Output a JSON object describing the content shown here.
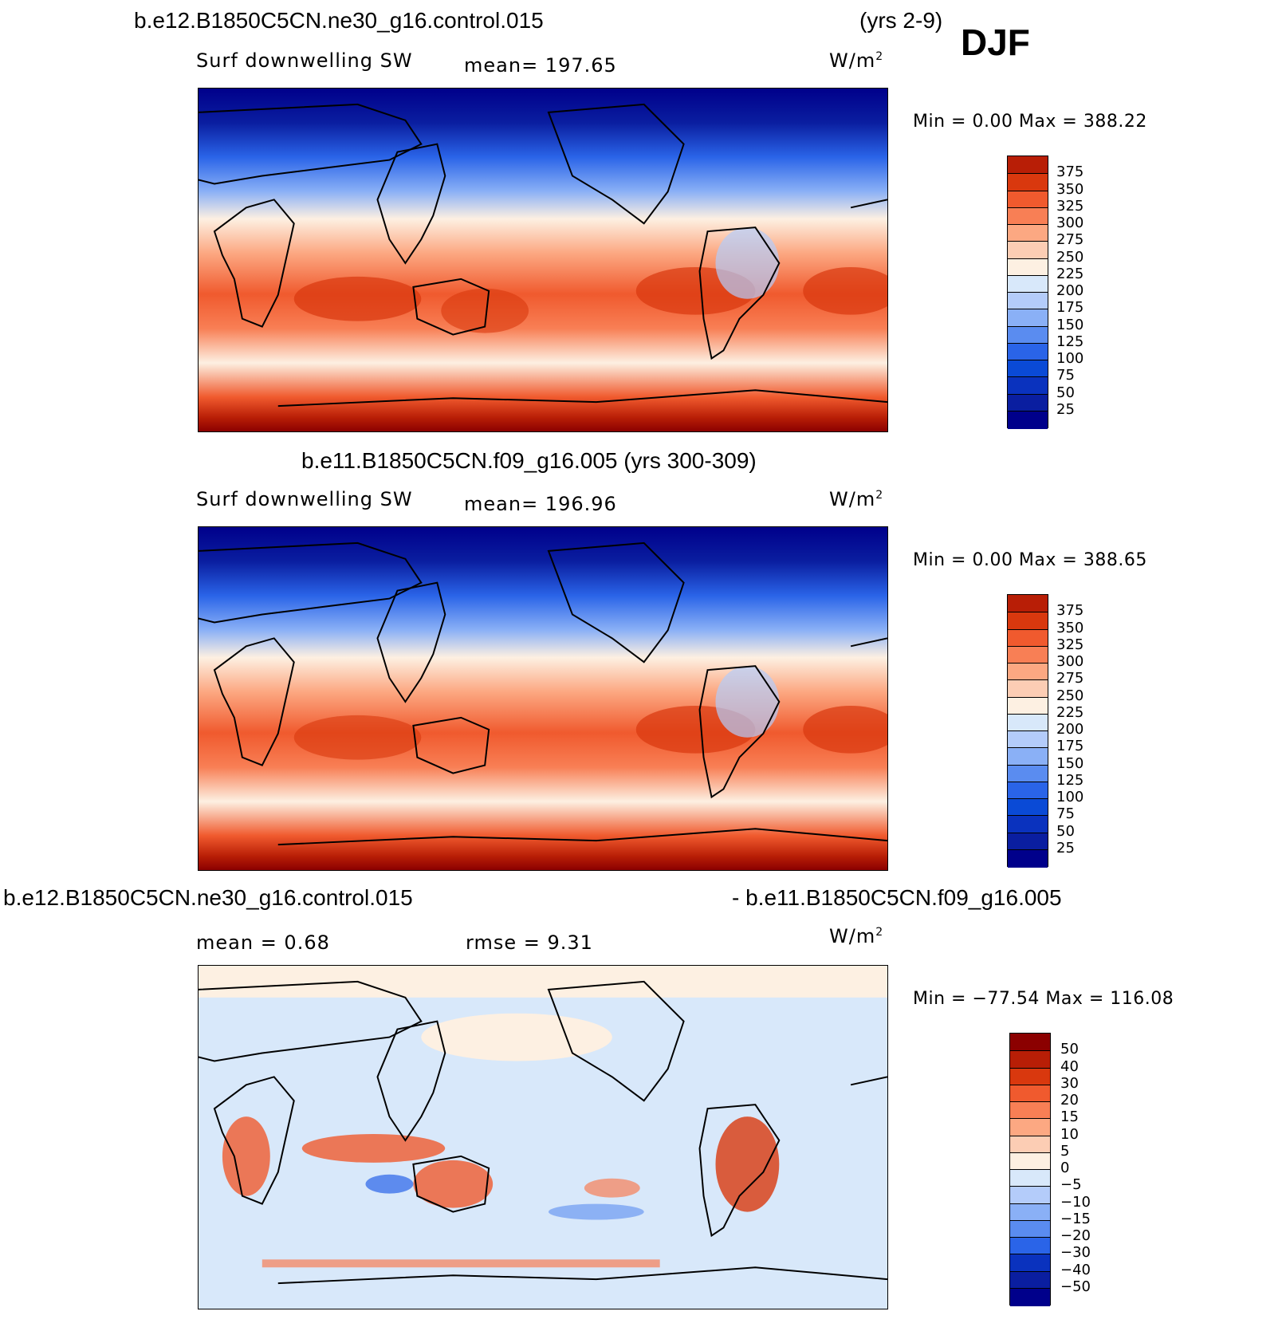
{
  "header": {
    "case_top": "b.e12.B1850C5CN.ne30_g16.control.015",
    "years_top": "(yrs 2-9)",
    "season": "DJF"
  },
  "colors": {
    "abs": [
      "#00008b",
      "#0a1ea0",
      "#0a32be",
      "#0a4ad6",
      "#2a64e8",
      "#5a8cf0",
      "#8ab0f6",
      "#b4ccfa",
      "#d8e8fa",
      "#fdf0e2",
      "#fccdb4",
      "#fca882",
      "#f87f55",
      "#f05a2e",
      "#d9380e",
      "#b81e06",
      "#8b0000"
    ],
    "diff": [
      "#00008b",
      "#0a1ea0",
      "#0a32be",
      "#2a64e8",
      "#5a8cf0",
      "#8ab0f6",
      "#b4ccfa",
      "#d8e8fa",
      "#fdf0e2",
      "#fccdb4",
      "#fca882",
      "#f87f55",
      "#f05a2e",
      "#d9380e",
      "#b81e06",
      "#8b0000"
    ]
  },
  "panels": [
    {
      "field": "Surf downwelling SW",
      "stat": "mean= 197.65",
      "units": "W/m",
      "minmax": "Min =    0.00 Max =  388.22",
      "levels": [
        "375",
        "350",
        "325",
        "300",
        "275",
        "250",
        "225",
        "200",
        "175",
        "150",
        "125",
        "100",
        "75",
        "50",
        "25"
      ],
      "map_icon": "world-map-downwelling-sw-model-a"
    },
    {
      "title": "b.e11.B1850C5CN.f09_g16.005 (yrs 300-309)",
      "field": "Surf downwelling SW",
      "stat": "mean= 196.96",
      "units": "W/m",
      "minmax": "Min =    0.00 Max =  388.65",
      "levels": [
        "375",
        "350",
        "325",
        "300",
        "275",
        "250",
        "225",
        "200",
        "175",
        "150",
        "125",
        "100",
        "75",
        "50",
        "25"
      ],
      "map_icon": "world-map-downwelling-sw-model-b"
    },
    {
      "title_left": "b.e12.B1850C5CN.ne30_g16.control.015",
      "title_right": "- b.e11.B1850C5CN.f09_g16.005",
      "stat_mean": "mean =    0.68",
      "stat_rmse": "rmse =    9.31",
      "units": "W/m",
      "minmax": "Min = −77.54 Max =  116.08",
      "levels": [
        "50",
        "40",
        "30",
        "20",
        "15",
        "10",
        "5",
        "0",
        "−5",
        "−10",
        "−15",
        "−20",
        "−30",
        "−40",
        "−50"
      ],
      "map_icon": "world-map-difference"
    }
  ]
}
